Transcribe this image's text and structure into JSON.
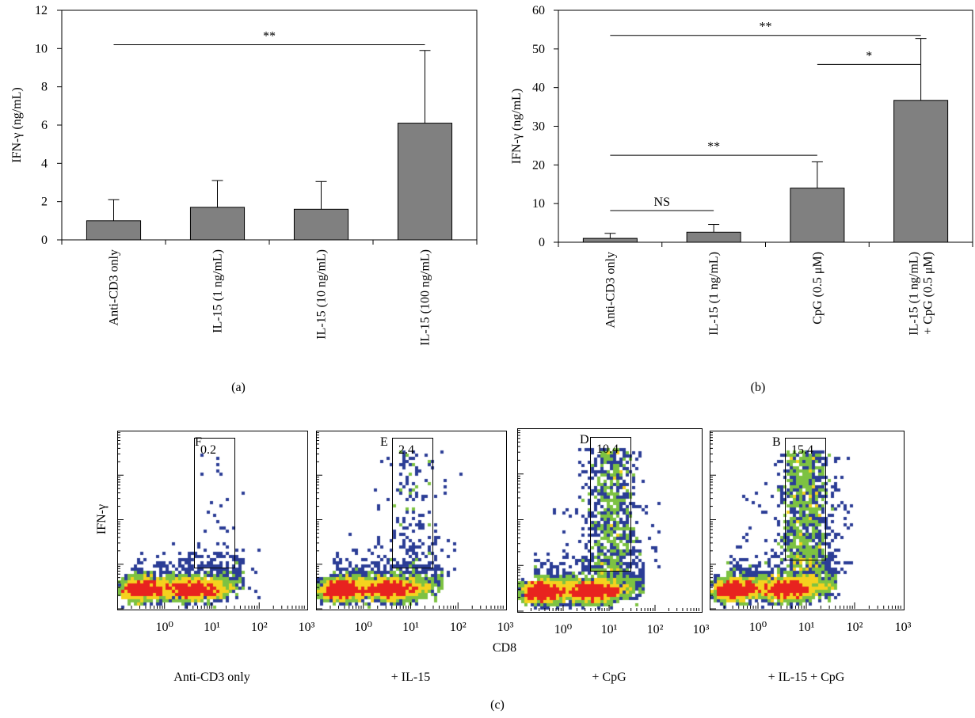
{
  "panels": [
    {
      "caption": "(a)",
      "chart_data": {
        "type": "bar",
        "ylabel": "IFN-γ (ng/mL)",
        "ylim": [
          0,
          12
        ],
        "yticks": [
          0,
          2,
          4,
          6,
          8,
          10,
          12
        ],
        "categories": [
          "Anti-CD3 only",
          "IL-15 (1 ng/mL)",
          "IL-15 (10 ng/mL)",
          "IL-15 (100 ng/mL)"
        ],
        "values": [
          1.0,
          1.7,
          1.6,
          6.1
        ],
        "errors": [
          1.1,
          1.4,
          1.45,
          3.8
        ],
        "bar_color": "#808080",
        "significance": [
          {
            "from": 0,
            "to": 3,
            "y": 10.2,
            "label": "**"
          }
        ]
      }
    },
    {
      "caption": "(b)",
      "chart_data": {
        "type": "bar",
        "ylabel": "IFN-γ (ng/mL)",
        "ylim": [
          0,
          60
        ],
        "yticks": [
          0,
          10,
          20,
          30,
          40,
          50,
          60
        ],
        "categories": [
          "Anti-CD3 only",
          "IL-15 (1 ng/mL)",
          "CpG (0.5 μM)",
          "IL-15 (1 ng/mL)\n+ CpG (0.5 μM)"
        ],
        "values": [
          1.0,
          2.6,
          14.0,
          36.7
        ],
        "errors": [
          1.3,
          2.0,
          6.8,
          16.0
        ],
        "bar_color": "#808080",
        "significance": [
          {
            "from": 0,
            "to": 3,
            "y": 53.5,
            "label": "**"
          },
          {
            "from": 2,
            "to": 3,
            "y": 46.0,
            "label": "*"
          },
          {
            "from": 0,
            "to": 2,
            "y": 22.5,
            "label": "**"
          },
          {
            "from": 0,
            "to": 1,
            "y": 8.2,
            "label": "NS"
          }
        ]
      }
    }
  ],
  "flow": {
    "caption": "(c)",
    "y_axis_label": "IFN-γ",
    "x_axis_label": "CD8",
    "x_tick_labels": [
      "10⁰",
      "10¹",
      "10²",
      "10³"
    ],
    "chart_data": {
      "type": "scatter",
      "xlabel": "CD8",
      "ylabel": "IFN-γ",
      "xscale": "log",
      "xlim": [
        0.1,
        1000
      ],
      "plots": [
        {
          "letter": "F",
          "gate_percent": "0.2",
          "condition": "Anti-CD3 only"
        },
        {
          "letter": "E",
          "gate_percent": "2.4",
          "condition": "+ IL-15"
        },
        {
          "letter": "D",
          "gate_percent": "10.4",
          "condition": "+ CpG"
        },
        {
          "letter": "B",
          "gate_percent": "15.4",
          "condition": "+ IL-15 + CpG"
        }
      ]
    },
    "colors": {
      "dense": "#e8231f",
      "mid": "#f5d21e",
      "low": "#7dc242",
      "sparse": "#2b3d96"
    }
  }
}
